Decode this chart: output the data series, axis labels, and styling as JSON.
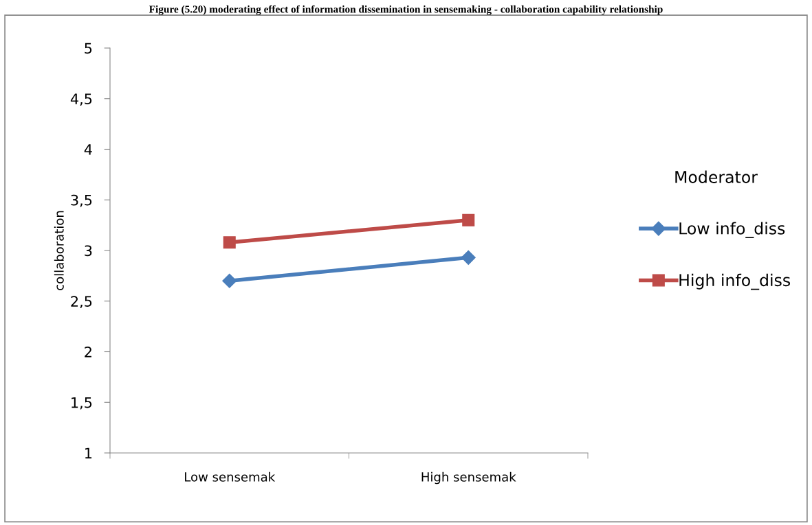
{
  "chart_data": {
    "type": "line",
    "title": "Figure (5.20) moderating effect of information dissemination in sensemaking - collaboration capability relationship",
    "ylabel": "collaboration",
    "legend_title": "Moderator",
    "categories": [
      "Low sensemak",
      "High sensemak"
    ],
    "series": [
      {
        "name": "Low info_diss",
        "color": "#4a7ebb",
        "values": [
          2.7,
          2.93
        ],
        "marker": "diamond"
      },
      {
        "name": "High info_diss",
        "color": "#be4b48",
        "values": [
          3.08,
          3.3
        ],
        "marker": "square"
      }
    ],
    "ylim": [
      1,
      5
    ],
    "yticks": [
      1,
      {
        "value": 1.5,
        "label": "1,5"
      },
      2,
      {
        "value": 2.5,
        "label": "2,5"
      },
      3,
      {
        "value": 3.5,
        "label": "3,5"
      },
      4,
      {
        "value": 4.5,
        "label": "4,5"
      },
      5
    ],
    "grid": false,
    "legend": "right",
    "line_style": "solid"
  }
}
